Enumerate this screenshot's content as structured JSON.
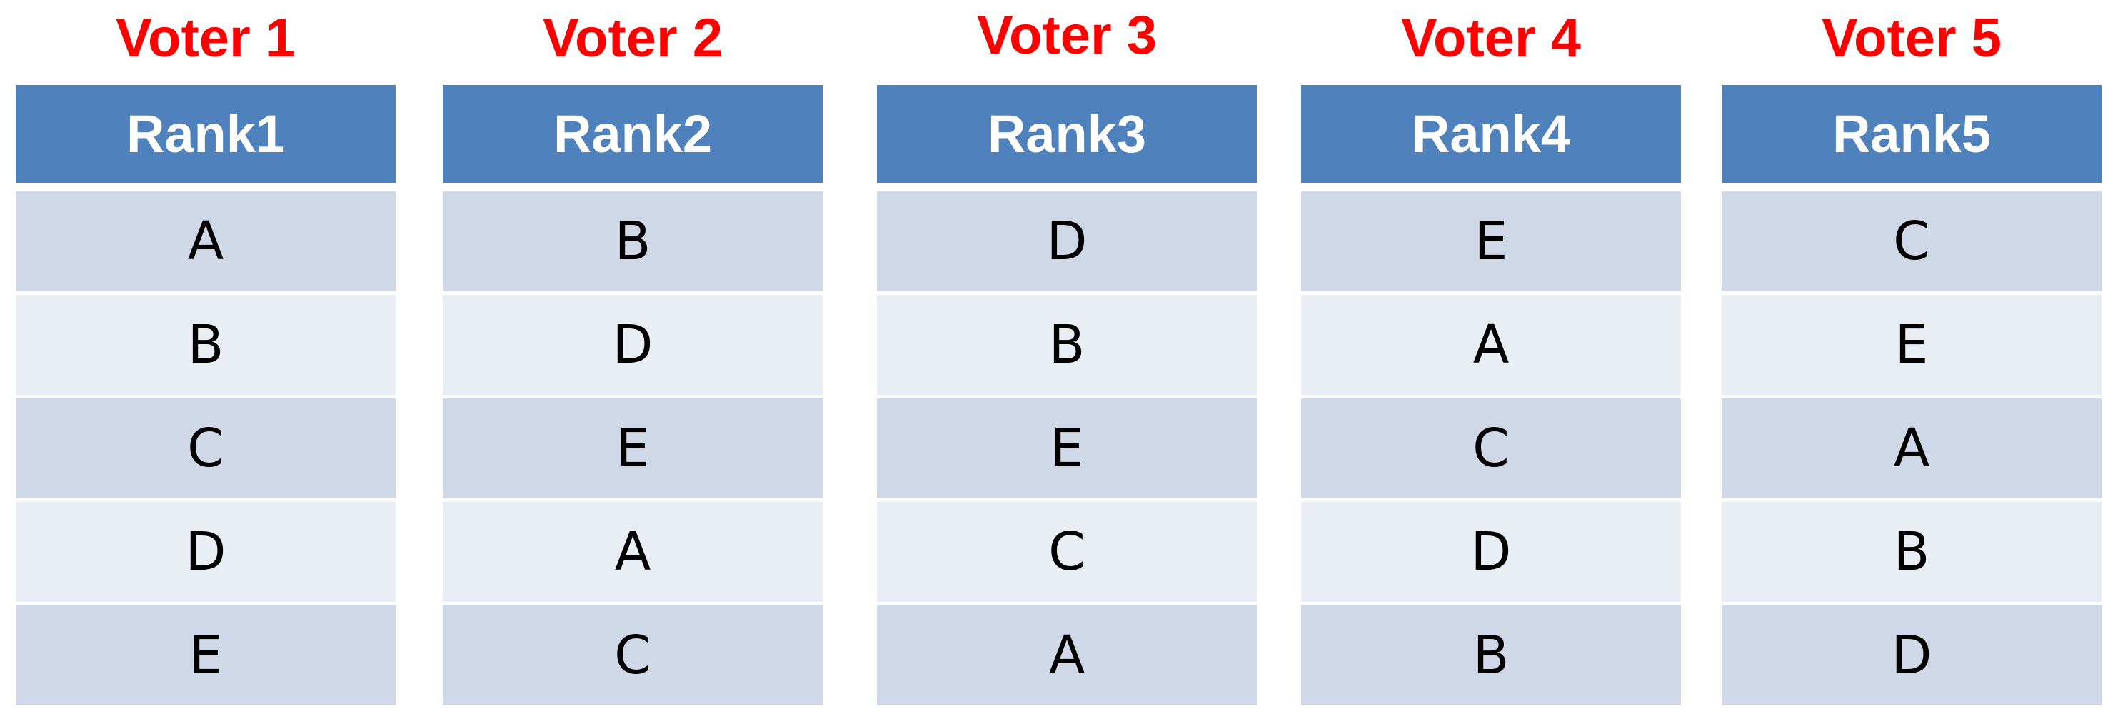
{
  "voters": [
    {
      "title": "Voter 1",
      "header": "Rank1",
      "ranking": [
        "A",
        "B",
        "C",
        "D",
        "E"
      ]
    },
    {
      "title": "Voter 2",
      "header": "Rank2",
      "ranking": [
        "B",
        "D",
        "E",
        "A",
        "C"
      ]
    },
    {
      "title": "Voter 3",
      "header": "Rank3",
      "ranking": [
        "D",
        "B",
        "E",
        "C",
        "A"
      ]
    },
    {
      "title": "Voter 4",
      "header": "Rank4",
      "ranking": [
        "E",
        "A",
        "C",
        "D",
        "B"
      ]
    },
    {
      "title": "Voter 5",
      "header": "Rank5",
      "ranking": [
        "C",
        "E",
        "A",
        "B",
        "D"
      ]
    }
  ],
  "colors": {
    "voter_title": "#ff0000",
    "header_bg": "#4f81bd",
    "row_dark": "#d0d8e8",
    "row_light": "#e9edf4"
  }
}
